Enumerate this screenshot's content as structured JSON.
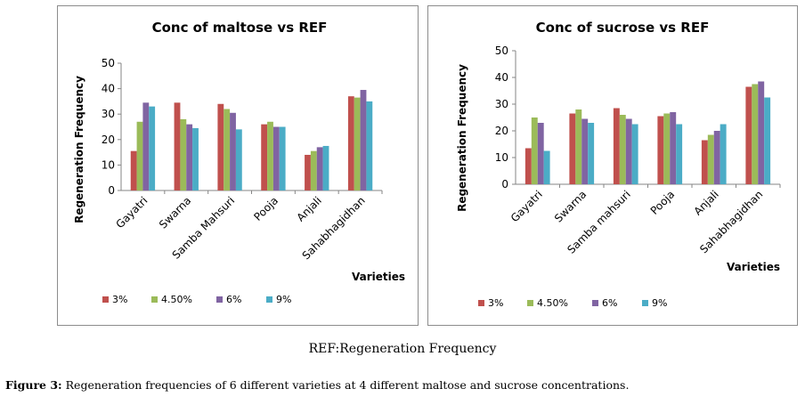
{
  "colors": {
    "s0": "#c0504d",
    "s1": "#9bbb59",
    "s2": "#8064a2",
    "s3": "#4bacc6"
  },
  "chart_data": [
    {
      "type": "bar",
      "title": "Conc of maltose vs REF",
      "xlabel": "Varieties",
      "ylabel": "Regeneration Frequency",
      "ylim": [
        0,
        50
      ],
      "yticks": [
        0,
        10,
        20,
        30,
        40,
        50
      ],
      "categories": [
        "Gayatri",
        "Swarna",
        "Samba Mahsuri",
        "Pooja",
        "Anjali",
        "Sahabhagidhan"
      ],
      "series": [
        {
          "name": "3%",
          "values": [
            15.5,
            34.5,
            34,
            26,
            14,
            37
          ]
        },
        {
          "name": "4.50%",
          "values": [
            27,
            28,
            32,
            27,
            15.5,
            36.5
          ]
        },
        {
          "name": "6%",
          "values": [
            34.5,
            26,
            30.5,
            25,
            17,
            39.5
          ]
        },
        {
          "name": "9%",
          "values": [
            33,
            24.5,
            24,
            25,
            17.5,
            35
          ]
        }
      ],
      "legend": "bottom"
    },
    {
      "type": "bar",
      "title": "Conc of sucrose vs REF",
      "xlabel": "Varieties",
      "ylabel": "Regeneration Frequency",
      "ylim": [
        0,
        50
      ],
      "yticks": [
        0,
        10,
        20,
        30,
        40,
        50
      ],
      "categories": [
        "Gayatri",
        "Swarna",
        "Samba mahsuri",
        "Pooja",
        "Anjali",
        "Sahabhagidhan"
      ],
      "series": [
        {
          "name": "3%",
          "values": [
            13.5,
            26.5,
            28.5,
            25.5,
            16.5,
            36.5
          ]
        },
        {
          "name": "4.50%",
          "values": [
            25,
            28,
            26,
            26.5,
            18.5,
            37.5
          ]
        },
        {
          "name": "6%",
          "values": [
            23,
            24.5,
            24.5,
            27,
            20,
            38.5
          ]
        },
        {
          "name": "9%",
          "values": [
            12.5,
            23,
            22.5,
            22.5,
            22.5,
            32.5
          ]
        }
      ],
      "legend": "bottom"
    }
  ],
  "ref_note": "REF:Regeneration Frequency",
  "caption": {
    "label": "Figure 3:",
    "text": " Regeneration frequencies of 6 different varieties at 4 different maltose and sucrose concentrations."
  }
}
